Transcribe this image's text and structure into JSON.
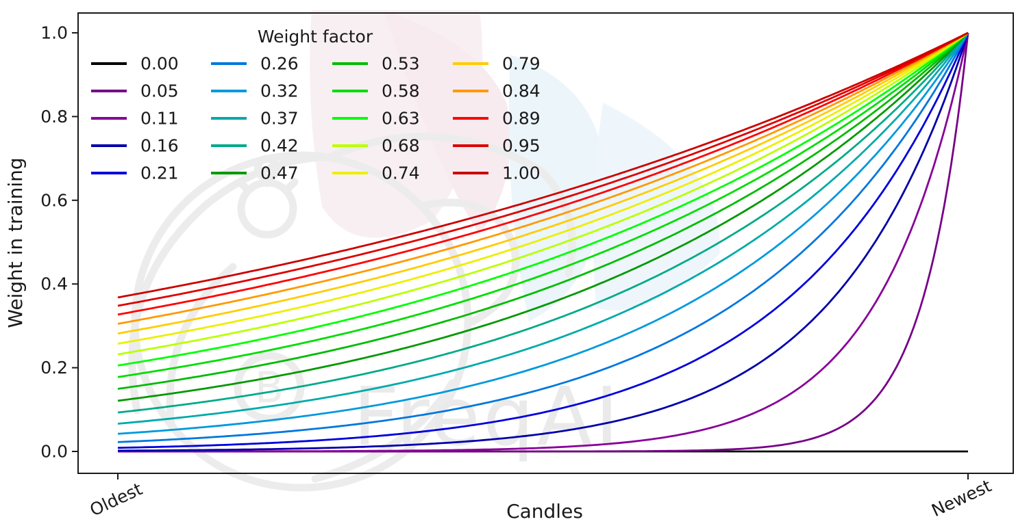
{
  "text_color": "#1a1a1a",
  "watermark": {
    "text": "FreqAI",
    "logo_glyph": "B",
    "gray": "#ececec",
    "pink": "#f7ecf0",
    "blue": "#eaf4fa"
  },
  "chart_data": {
    "type": "line",
    "title": "",
    "xlabel": "Candles",
    "ylabel": "Weight in training",
    "x_tick_labels": [
      "Oldest",
      "Newest"
    ],
    "y_ticks": [
      0.0,
      0.2,
      0.4,
      0.6,
      0.8,
      1.0
    ],
    "x_range_normalized": [
      0,
      1
    ],
    "ylim": [
      -0.052,
      1.047
    ],
    "grid": false,
    "legend": {
      "title": "Weight factor",
      "position": "upper-left",
      "columns": 4,
      "rows": 5,
      "order": "column-major",
      "frame": false
    },
    "curve_formula": "weight(x) = exp(-(1 - x) / wf) for wf > 0; weight(x) = 0 for wf = 0; x = 0 at oldest candle, x = 1 at newest candle",
    "colormap": "nipy_spectral sampled at i/20 for the 20 lines",
    "series": [
      {
        "label": "0.00",
        "wf": 0.0,
        "color": "#000000",
        "y_oldest": 0.0,
        "y_newest": 0.0
      },
      {
        "label": "0.05",
        "wf": 0.0526,
        "color": "#770088",
        "y_oldest": 0.0,
        "y_newest": 1.0
      },
      {
        "label": "0.11",
        "wf": 0.1053,
        "color": "#880099",
        "y_oldest": 0.0001,
        "y_newest": 1.0
      },
      {
        "label": "0.16",
        "wf": 0.1579,
        "color": "#0000AA",
        "y_oldest": 0.0018,
        "y_newest": 1.0
      },
      {
        "label": "0.21",
        "wf": 0.2105,
        "color": "#0000DD",
        "y_oldest": 0.0087,
        "y_newest": 1.0
      },
      {
        "label": "0.26",
        "wf": 0.2632,
        "color": "#0077DD",
        "y_oldest": 0.0224,
        "y_newest": 1.0
      },
      {
        "label": "0.32",
        "wf": 0.3158,
        "color": "#0099DD",
        "y_oldest": 0.0421,
        "y_newest": 1.0
      },
      {
        "label": "0.37",
        "wf": 0.3684,
        "color": "#00AAAA",
        "y_oldest": 0.0662,
        "y_newest": 1.0
      },
      {
        "label": "0.42",
        "wf": 0.4211,
        "color": "#00AA88",
        "y_oldest": 0.093,
        "y_newest": 1.0
      },
      {
        "label": "0.47",
        "wf": 0.4737,
        "color": "#009900",
        "y_oldest": 0.1211,
        "y_newest": 1.0
      },
      {
        "label": "0.53",
        "wf": 0.5263,
        "color": "#00BB00",
        "y_oldest": 0.1496,
        "y_newest": 1.0
      },
      {
        "label": "0.58",
        "wf": 0.5789,
        "color": "#00DD00",
        "y_oldest": 0.1778,
        "y_newest": 1.0
      },
      {
        "label": "0.63",
        "wf": 0.6316,
        "color": "#00FF00",
        "y_oldest": 0.2053,
        "y_newest": 1.0
      },
      {
        "label": "0.68",
        "wf": 0.6842,
        "color": "#BBFF00",
        "y_oldest": 0.2319,
        "y_newest": 1.0
      },
      {
        "label": "0.74",
        "wf": 0.7368,
        "color": "#EEEE00",
        "y_oldest": 0.2574,
        "y_newest": 1.0
      },
      {
        "label": "0.79",
        "wf": 0.7895,
        "color": "#FFCC00",
        "y_oldest": 0.2818,
        "y_newest": 1.0
      },
      {
        "label": "0.84",
        "wf": 0.8421,
        "color": "#FF9900",
        "y_oldest": 0.305,
        "y_newest": 1.0
      },
      {
        "label": "0.89",
        "wf": 0.8947,
        "color": "#FF0000",
        "y_oldest": 0.327,
        "y_newest": 1.0
      },
      {
        "label": "0.95",
        "wf": 0.9474,
        "color": "#DD0000",
        "y_oldest": 0.348,
        "y_newest": 1.0
      },
      {
        "label": "1.00",
        "wf": 1.0,
        "color": "#CC0000",
        "y_oldest": 0.3679,
        "y_newest": 1.0
      }
    ]
  }
}
